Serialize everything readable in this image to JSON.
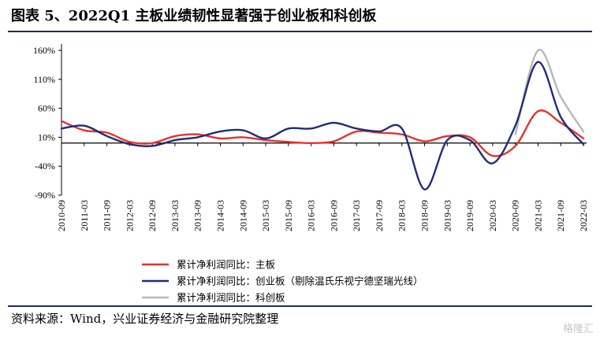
{
  "header": {
    "title": "图表 5、2022Q1 主板业绩韧性显著强于创业板和科创板"
  },
  "footer": {
    "source": "资料来源：Wind，兴业证券经济与金融研究院整理",
    "watermark": "格隆汇"
  },
  "colors": {
    "main_board": "#e8322d",
    "chinext": "#1f2d7a",
    "star": "#b8b8b8",
    "rule": "#1f2d5a"
  },
  "chart_data": {
    "type": "line",
    "x": [
      "2010-09",
      "2011-03",
      "2011-09",
      "2012-03",
      "2012-09",
      "2013-03",
      "2013-09",
      "2014-03",
      "2014-09",
      "2015-03",
      "2015-09",
      "2016-03",
      "2016-09",
      "2017-03",
      "2017-09",
      "2018-03",
      "2018-09",
      "2019-03",
      "2019-09",
      "2020-03",
      "2020-09",
      "2021-03",
      "2021-09",
      "2022-03"
    ],
    "x_ticks": [
      "2010-09",
      "2011-03",
      "2011-09",
      "2012-03",
      "2012-09",
      "2013-03",
      "2013-09",
      "2014-03",
      "2014-09",
      "2015-03",
      "2015-09",
      "2016-03",
      "2016-09",
      "2017-03",
      "2017-09",
      "2018-03",
      "2018-09",
      "2019-03",
      "2019-09",
      "2020-03",
      "2020-09",
      "2021-03",
      "2021-09",
      "2022-03"
    ],
    "y_ticks": [
      "160%",
      "110%",
      "60%",
      "10%",
      "-40%",
      "-90%"
    ],
    "y_tick_values": [
      160,
      110,
      60,
      10,
      -40,
      -90
    ],
    "ylim": [
      -90,
      160
    ],
    "series": [
      {
        "name": "累计净利润同比：主板",
        "color": "#e8322d",
        "values": [
          38,
          22,
          18,
          2,
          0,
          12,
          15,
          8,
          10,
          5,
          2,
          0,
          3,
          20,
          18,
          15,
          3,
          12,
          10,
          -22,
          -5,
          55,
          35,
          8
        ]
      },
      {
        "name": "累计净利润同比：创业板（剔除温氏乐视宁德坚瑞光线）",
        "color": "#1f2d7a",
        "values": [
          25,
          30,
          12,
          -2,
          -5,
          5,
          10,
          20,
          22,
          8,
          25,
          25,
          35,
          25,
          20,
          25,
          -80,
          5,
          5,
          -35,
          30,
          140,
          45,
          -2
        ]
      },
      {
        "name": "累计净利润同比：科创板",
        "color": "#b8b8b8",
        "values": [
          null,
          null,
          null,
          null,
          null,
          null,
          null,
          null,
          null,
          null,
          null,
          null,
          null,
          null,
          null,
          null,
          null,
          null,
          null,
          null,
          15,
          160,
          80,
          20
        ]
      }
    ]
  }
}
